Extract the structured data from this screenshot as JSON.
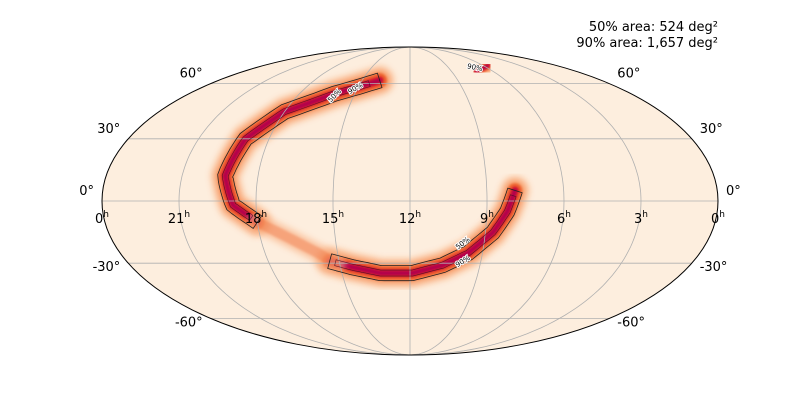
{
  "chart_data": {
    "type": "heatmap",
    "projection": "mollweide",
    "title": "",
    "annotations": [
      {
        "text": "50% area: 524 deg²"
      },
      {
        "text": "90% area: 1,657 deg²"
      }
    ],
    "lon_ticks": [
      {
        "value": 24,
        "label": "0",
        "unit": "h"
      },
      {
        "value": 21,
        "label": "21",
        "unit": "h"
      },
      {
        "value": 18,
        "label": "18",
        "unit": "h"
      },
      {
        "value": 15,
        "label": "15",
        "unit": "h"
      },
      {
        "value": 12,
        "label": "12",
        "unit": "h"
      },
      {
        "value": 9,
        "label": "9",
        "unit": "h"
      },
      {
        "value": 6,
        "label": "6",
        "unit": "h"
      },
      {
        "value": 3,
        "label": "3",
        "unit": "h"
      },
      {
        "value": 0,
        "label": "0",
        "unit": "h"
      }
    ],
    "lat_ticks": [
      {
        "value": 60,
        "label": "60°"
      },
      {
        "value": 30,
        "label": "30°"
      },
      {
        "value": 0,
        "label": "0°"
      },
      {
        "value": -30,
        "label": "-30°"
      },
      {
        "value": -60,
        "label": "-60°"
      }
    ],
    "grid": true,
    "colormap": "cylon",
    "contour_labels": [
      "50%",
      "90%",
      "50%",
      "90%",
      "90%"
    ],
    "contour_levels": [
      50,
      90
    ],
    "credible_region_arcs": [
      {
        "name": "northern arc",
        "points": [
          [
            13.9,
            62
          ],
          [
            16.1,
            54
          ],
          [
            18.0,
            44
          ],
          [
            19.0,
            30
          ],
          [
            19.3,
            12
          ],
          [
            18.9,
            -2
          ],
          [
            18.0,
            -10
          ]
        ],
        "half_width_deg": 3.5,
        "peak": 0.9
      },
      {
        "name": "southern arc",
        "points": [
          [
            7.9,
            5
          ],
          [
            8.2,
            -5
          ],
          [
            8.7,
            -15
          ],
          [
            9.6,
            -25
          ],
          [
            10.6,
            -31
          ],
          [
            11.9,
            -35
          ],
          [
            13.3,
            -35
          ],
          [
            14.5,
            -32
          ],
          [
            15.4,
            -29
          ]
        ],
        "half_width_deg": 3.5,
        "peak": 1.0
      },
      {
        "name": "faint bridge",
        "points": [
          [
            18.0,
            -10
          ],
          [
            16.8,
            -18
          ],
          [
            15.8,
            -25
          ],
          [
            15.2,
            -30
          ]
        ],
        "half_width_deg": 2.5,
        "peak": 0.25
      },
      {
        "name": "upper right patch",
        "points": [
          [
            5.6,
            72
          ],
          [
            6.4,
            70
          ],
          [
            7.2,
            68
          ]
        ],
        "half_width_deg": 2.0,
        "peak": 0.55
      }
    ]
  }
}
